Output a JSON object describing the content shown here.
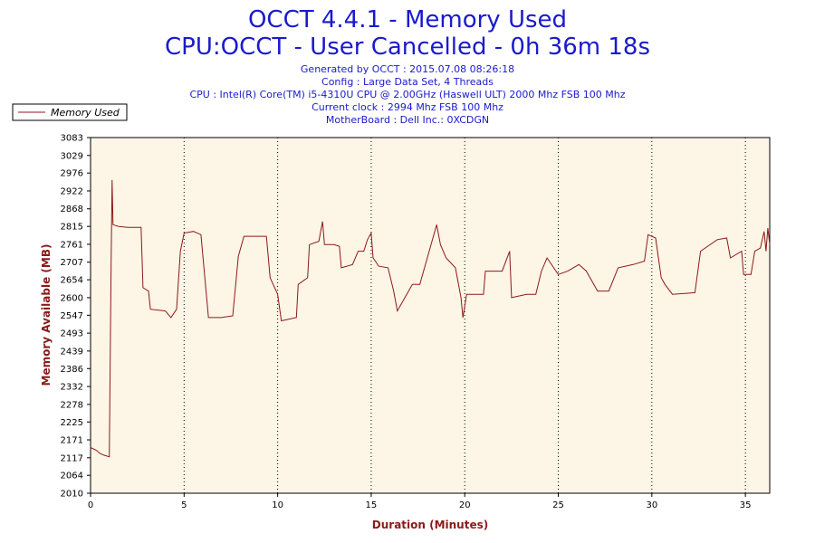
{
  "colors": {
    "title": "#1a1acc",
    "plot_bg": "#fdf5e6",
    "series": "#8b1a1a",
    "axis_title": "#8b1a1a",
    "grid": "#000000"
  },
  "chart_data": {
    "type": "line",
    "title_line1": "OCCT 4.4.1 - Memory Used",
    "title_line2": "CPU:OCCT - User Cancelled - 0h 36m 18s",
    "info_lines": [
      "Generated by OCCT : 2015.07.08 08:26:18",
      "Config : Large Data Set, 4 Threads",
      "CPU : Intel(R) Core(TM) i5-4310U CPU @ 2.00GHz (Haswell ULT) 2000 Mhz FSB 100 Mhz",
      "Current clock : 2994 Mhz FSB 100 Mhz",
      "MotherBoard : Dell Inc.: 0XCDGN"
    ],
    "xlabel": "Duration (Minutes)",
    "ylabel": "Memory Available (MB)",
    "xlim": [
      0,
      36.3
    ],
    "ylim": [
      2010,
      3083
    ],
    "x_ticks": [
      "0",
      "5",
      "10",
      "15",
      "20",
      "25",
      "30",
      "35"
    ],
    "y_ticks": [
      "3083",
      "3029",
      "2976",
      "2922",
      "2868",
      "2815",
      "2761",
      "2707",
      "2654",
      "2600",
      "2547",
      "2493",
      "2439",
      "2386",
      "2332",
      "2278",
      "2225",
      "2171",
      "2117",
      "2064",
      "2010"
    ],
    "grid": "vertical dotted at x ticks",
    "legend_position": "top-left",
    "series": [
      {
        "name": "Memory Used",
        "points": [
          [
            0,
            2148
          ],
          [
            0.3,
            2140
          ],
          [
            0.5,
            2130
          ],
          [
            0.7,
            2125
          ],
          [
            1.0,
            2120
          ],
          [
            1.1,
            2700
          ],
          [
            1.15,
            2955
          ],
          [
            1.2,
            2820
          ],
          [
            1.5,
            2815
          ],
          [
            2.0,
            2812
          ],
          [
            2.7,
            2812
          ],
          [
            2.8,
            2630
          ],
          [
            3.1,
            2620
          ],
          [
            3.2,
            2565
          ],
          [
            4.0,
            2560
          ],
          [
            4.3,
            2540
          ],
          [
            4.6,
            2565
          ],
          [
            4.8,
            2740
          ],
          [
            5.0,
            2795
          ],
          [
            5.5,
            2800
          ],
          [
            5.9,
            2790
          ],
          [
            6.3,
            2540
          ],
          [
            7.0,
            2540
          ],
          [
            7.6,
            2545
          ],
          [
            7.9,
            2725
          ],
          [
            8.2,
            2785
          ],
          [
            9.0,
            2785
          ],
          [
            9.4,
            2785
          ],
          [
            9.6,
            2660
          ],
          [
            10.0,
            2610
          ],
          [
            10.2,
            2530
          ],
          [
            11.0,
            2540
          ],
          [
            11.1,
            2640
          ],
          [
            11.6,
            2660
          ],
          [
            11.7,
            2760
          ],
          [
            12.2,
            2770
          ],
          [
            12.4,
            2830
          ],
          [
            12.5,
            2760
          ],
          [
            13.0,
            2760
          ],
          [
            13.3,
            2755
          ],
          [
            13.4,
            2690
          ],
          [
            14.0,
            2700
          ],
          [
            14.3,
            2740
          ],
          [
            14.6,
            2740
          ],
          [
            14.8,
            2775
          ],
          [
            15.0,
            2795
          ],
          [
            15.1,
            2720
          ],
          [
            15.4,
            2695
          ],
          [
            15.9,
            2690
          ],
          [
            16.2,
            2620
          ],
          [
            16.4,
            2560
          ],
          [
            16.8,
            2600
          ],
          [
            17.2,
            2640
          ],
          [
            17.6,
            2640
          ],
          [
            17.9,
            2700
          ],
          [
            18.2,
            2760
          ],
          [
            18.5,
            2820
          ],
          [
            18.7,
            2760
          ],
          [
            19.0,
            2720
          ],
          [
            19.5,
            2690
          ],
          [
            19.8,
            2600
          ],
          [
            19.9,
            2540
          ],
          [
            20.1,
            2610
          ],
          [
            21.0,
            2610
          ],
          [
            21.1,
            2680
          ],
          [
            22.0,
            2680
          ],
          [
            22.4,
            2740
          ],
          [
            22.5,
            2600
          ],
          [
            23.3,
            2610
          ],
          [
            23.8,
            2610
          ],
          [
            24.1,
            2680
          ],
          [
            24.4,
            2720
          ],
          [
            25.0,
            2670
          ],
          [
            25.5,
            2680
          ],
          [
            26.1,
            2700
          ],
          [
            26.5,
            2680
          ],
          [
            27.1,
            2620
          ],
          [
            27.7,
            2620
          ],
          [
            28.2,
            2690
          ],
          [
            29.0,
            2700
          ],
          [
            29.6,
            2710
          ],
          [
            29.8,
            2790
          ],
          [
            30.2,
            2780
          ],
          [
            30.5,
            2660
          ],
          [
            30.7,
            2640
          ],
          [
            31.1,
            2610
          ],
          [
            32.3,
            2615
          ],
          [
            32.6,
            2740
          ],
          [
            33.5,
            2775
          ],
          [
            34.0,
            2780
          ],
          [
            34.2,
            2720
          ],
          [
            34.8,
            2740
          ],
          [
            34.9,
            2670
          ],
          [
            35.3,
            2670
          ],
          [
            35.5,
            2740
          ],
          [
            35.8,
            2750
          ],
          [
            36.0,
            2800
          ],
          [
            36.1,
            2740
          ],
          [
            36.2,
            2810
          ],
          [
            36.3,
            2760
          ]
        ]
      }
    ]
  }
}
